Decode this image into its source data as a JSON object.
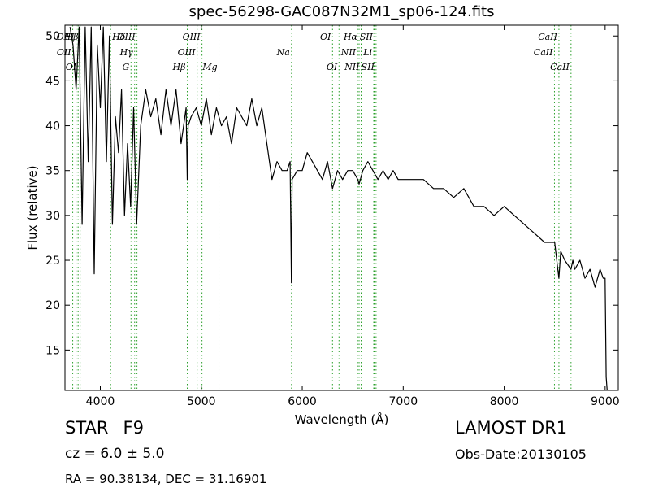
{
  "chart_data": {
    "type": "line",
    "title": "spec-56298-GAC087N32M1_sp06-124.fits",
    "xlabel": "Wavelength (Å)",
    "ylabel": "Flux (relative)",
    "xlim": [
      3650,
      9130
    ],
    "ylim": [
      10.5,
      51.2
    ],
    "x_ticks": [
      4000,
      5000,
      6000,
      7000,
      8000,
      9000
    ],
    "y_ticks": [
      15,
      20,
      25,
      30,
      35,
      40,
      45,
      50
    ],
    "line_color": "#000000",
    "marker_color": "#2ca02c",
    "series": [
      {
        "x": [
          3700,
          3730,
          3760,
          3790,
          3820,
          3850,
          3880,
          3910,
          3940,
          3970,
          4000,
          4030,
          4060,
          4090,
          4120,
          4150,
          4180,
          4210,
          4240,
          4270,
          4300,
          4330,
          4360,
          4400,
          4450,
          4500,
          4550,
          4600,
          4650,
          4700,
          4750,
          4800,
          4850,
          4861,
          4870,
          4900,
          4950,
          5000,
          5050,
          5100,
          5150,
          5200,
          5250,
          5300,
          5350,
          5400,
          5450,
          5500,
          5550,
          5600,
          5650,
          5700,
          5750,
          5800,
          5850,
          5880,
          5893,
          5900,
          5950,
          6000,
          6050,
          6100,
          6150,
          6200,
          6250,
          6300,
          6350,
          6400,
          6450,
          6500,
          6550,
          6563,
          6600,
          6650,
          6700,
          6750,
          6800,
          6850,
          6900,
          6950,
          7000,
          7100,
          7200,
          7300,
          7400,
          7500,
          7600,
          7700,
          7800,
          7900,
          8000,
          8100,
          8200,
          8300,
          8400,
          8450,
          8500,
          8542,
          8560,
          8600,
          8662,
          8680,
          8700,
          8750,
          8800,
          8850,
          8900,
          8950,
          8980,
          9000,
          9010,
          9020
        ],
        "y": [
          51,
          49,
          44,
          51,
          29,
          51,
          36,
          51,
          23.5,
          49,
          42,
          51,
          36,
          50,
          29,
          41,
          37,
          44,
          30,
          38,
          31,
          42,
          29,
          40,
          44,
          41,
          43,
          39,
          44,
          40,
          44,
          38,
          42,
          34,
          40,
          41,
          42,
          40,
          43,
          39,
          42,
          40,
          41,
          38,
          42,
          41,
          40,
          43,
          40,
          42,
          38,
          34,
          36,
          35,
          35,
          36,
          22.5,
          34,
          35,
          35,
          37,
          36,
          35,
          34,
          36,
          33,
          35,
          34,
          35,
          35,
          34,
          33.5,
          35,
          36,
          35,
          34,
          35,
          34,
          35,
          34,
          34,
          34,
          34,
          33,
          33,
          32,
          33,
          31,
          31,
          30,
          31,
          30,
          29,
          28,
          27,
          27,
          27,
          23,
          26,
          25,
          24,
          25,
          24,
          25,
          23,
          24,
          22,
          24,
          23,
          23,
          12,
          10.5
        ]
      }
    ],
    "lines": [
      {
        "label": "OII",
        "wavelength": 3727,
        "row": 1,
        "side": "left"
      },
      {
        "label": "OIII",
        "wavelength": 3760,
        "row": 0,
        "side": "left"
      },
      {
        "label": "Hβ",
        "wavelength": 3800,
        "row": 0,
        "side": "left"
      },
      {
        "label": "OI",
        "wavelength": 3780,
        "row": 2,
        "side": "left"
      },
      {
        "label": "Hδ",
        "wavelength": 4102,
        "row": 0,
        "side": "right"
      },
      {
        "label": "OIII",
        "wavelength": 4363,
        "row": 0,
        "side": "left"
      },
      {
        "label": "Hγ",
        "wavelength": 4340,
        "row": 1,
        "side": "left"
      },
      {
        "label": "G",
        "wavelength": 4304,
        "row": 2,
        "side": "left"
      },
      {
        "label": "OIII",
        "wavelength": 5007,
        "row": 0,
        "side": "left"
      },
      {
        "label": "Hβ",
        "wavelength": 4861,
        "row": 2,
        "side": "left"
      },
      {
        "label": "OIII",
        "wavelength": 4959,
        "row": 1,
        "side": "left"
      },
      {
        "label": "Mg",
        "wavelength": 5175,
        "row": 2,
        "side": "left"
      },
      {
        "label": "Na",
        "wavelength": 5894,
        "row": 1,
        "side": "left"
      },
      {
        "label": "OI",
        "wavelength": 6300,
        "row": 0,
        "side": "left"
      },
      {
        "label": "OI",
        "wavelength": 6364,
        "row": 2,
        "side": "left"
      },
      {
        "label": "Hα",
        "wavelength": 6563,
        "row": 0,
        "side": "left"
      },
      {
        "label": "NII",
        "wavelength": 6548,
        "row": 1,
        "side": "left"
      },
      {
        "label": "NII",
        "wavelength": 6583,
        "row": 2,
        "side": "left"
      },
      {
        "label": "SII",
        "wavelength": 6716,
        "row": 0,
        "side": "left"
      },
      {
        "label": "Li",
        "wavelength": 6708,
        "row": 1,
        "side": "left"
      },
      {
        "label": "SII",
        "wavelength": 6731,
        "row": 2,
        "side": "left"
      },
      {
        "label": "CaII",
        "wavelength": 8542,
        "row": 0,
        "side": "left"
      },
      {
        "label": "CaII",
        "wavelength": 8498,
        "row": 1,
        "side": "left"
      },
      {
        "label": "CaII",
        "wavelength": 8662,
        "row": 2,
        "side": "left"
      }
    ]
  },
  "info": {
    "object_class": "STAR",
    "subclass": "F9",
    "survey": "LAMOST DR1",
    "redshift": "cz = 6.0 ± 5.0",
    "obs_date": "Obs-Date:20130105",
    "coordinates": "RA = 90.38134, DEC = 31.16901"
  }
}
